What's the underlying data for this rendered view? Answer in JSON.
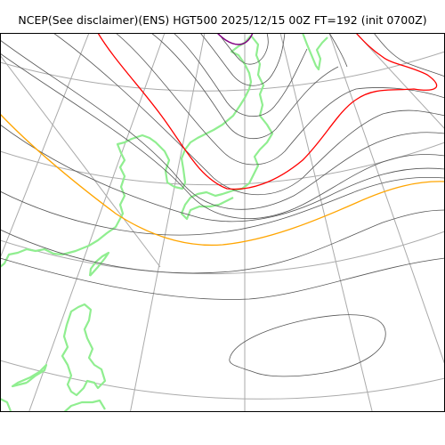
{
  "title": "NCEP(See disclaimer)(ENS) HGT500 2025/12/15 00Z FT=192 (init 0700Z)",
  "map": {
    "projection": "polar-stereographic",
    "layers": [
      "graticule",
      "coastline",
      "height-contours",
      "highlighted-contours"
    ],
    "colors": {
      "graticule": "#aaaaaa",
      "coastline": "#90ee90",
      "contour": "#555555",
      "contour_red": "#ff0000",
      "contour_orange": "#ffa500",
      "contour_purple": "#800080",
      "frame": "#000000"
    }
  }
}
